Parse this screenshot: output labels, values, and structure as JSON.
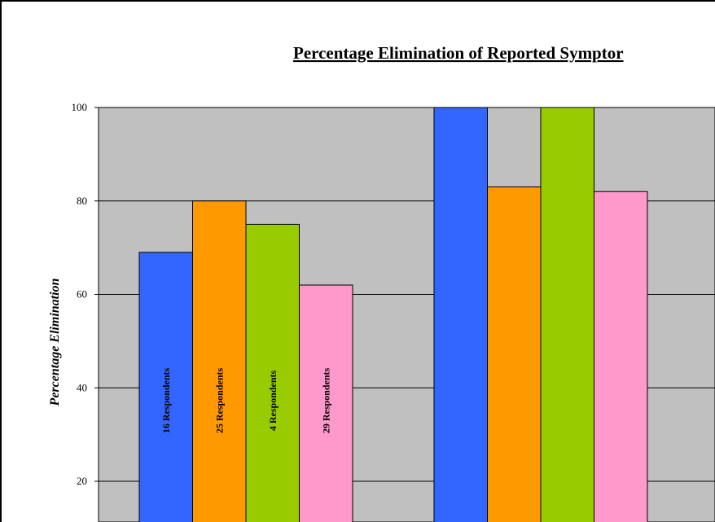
{
  "chart_data": {
    "type": "bar",
    "title": "Percentage Elimination of Reported Symptor",
    "xlabel": "",
    "ylabel": "Percentage Elimination",
    "ylim": [
      0,
      100
    ],
    "yticks": [
      "20",
      "40",
      "60",
      "80",
      "100"
    ],
    "grid": true,
    "categories": [
      "",
      ""
    ],
    "series": [
      {
        "color": "#3366ff",
        "values": [
          69,
          100
        ],
        "bar_labels": [
          "16 Respondents",
          ""
        ]
      },
      {
        "color": "#ff9900",
        "values": [
          80,
          83
        ],
        "bar_labels": [
          "25 Respondents",
          ""
        ]
      },
      {
        "color": "#99cc00",
        "values": [
          75,
          100
        ],
        "bar_labels": [
          "4 Respondents",
          ""
        ]
      },
      {
        "color": "#ff99cc",
        "values": [
          62,
          82
        ],
        "bar_labels": [
          "29 Respondents",
          ""
        ]
      }
    ],
    "plot_background": "#c0c0c0"
  }
}
